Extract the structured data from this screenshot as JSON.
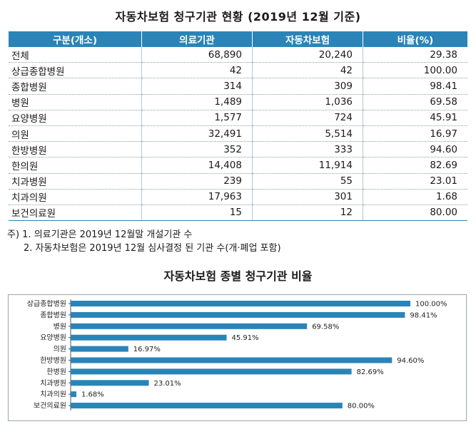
{
  "table_title": "자동차보험 청구기관 현황 (2019년 12월 기준)",
  "table": {
    "headers": [
      "구분(개소)",
      "의료기관",
      "자동차보험",
      "비율(%)"
    ],
    "rows": [
      [
        "전체",
        "68,890",
        "20,240",
        "29.38"
      ],
      [
        "상급종합병원",
        "42",
        "42",
        "100.00"
      ],
      [
        "종합병원",
        "314",
        "309",
        "98.41"
      ],
      [
        "병원",
        "1,489",
        "1,036",
        "69.58"
      ],
      [
        "요양병원",
        "1,577",
        "724",
        "45.91"
      ],
      [
        "의원",
        "32,491",
        "5,514",
        "16.97"
      ],
      [
        "한방병원",
        "352",
        "333",
        "94.60"
      ],
      [
        "한의원",
        "14,408",
        "11,914",
        "82.69"
      ],
      [
        "치과병원",
        "239",
        "55",
        "23.01"
      ],
      [
        "치과의원",
        "17,963",
        "301",
        "1.68"
      ],
      [
        "보건의료원",
        "15",
        "12",
        "80.00"
      ]
    ]
  },
  "notes": {
    "note1": "주) 1. 의료기관은 2019년 12월말 개설기관 수",
    "note2": "2. 자동차보험은 2019년 12월 심사결정 된 기관 수(개·폐업 포함)"
  },
  "chart_title": "자동차보험 종별 청구기관 비율",
  "chart_data": {
    "type": "bar",
    "orientation": "horizontal",
    "categories": [
      "상급종합병원",
      "종합병원",
      "병원",
      "요양병원",
      "의원",
      "한방병원",
      "한병원",
      "치과병원",
      "치과의원",
      "보건의료원"
    ],
    "values": [
      100.0,
      98.41,
      69.58,
      45.91,
      16.97,
      94.6,
      82.69,
      23.01,
      1.68,
      80.0
    ],
    "labels": [
      "100.00%",
      "98.41%",
      "69.58%",
      "45.91%",
      "16.97%",
      "94.60%",
      "82.69%",
      "23.01%",
      "1.68%",
      "80.00%"
    ],
    "xlim": [
      0,
      100
    ],
    "bar_color": "#2a84b8",
    "grid": false,
    "legend": false
  },
  "colors": {
    "accent": "#2a84b8"
  }
}
